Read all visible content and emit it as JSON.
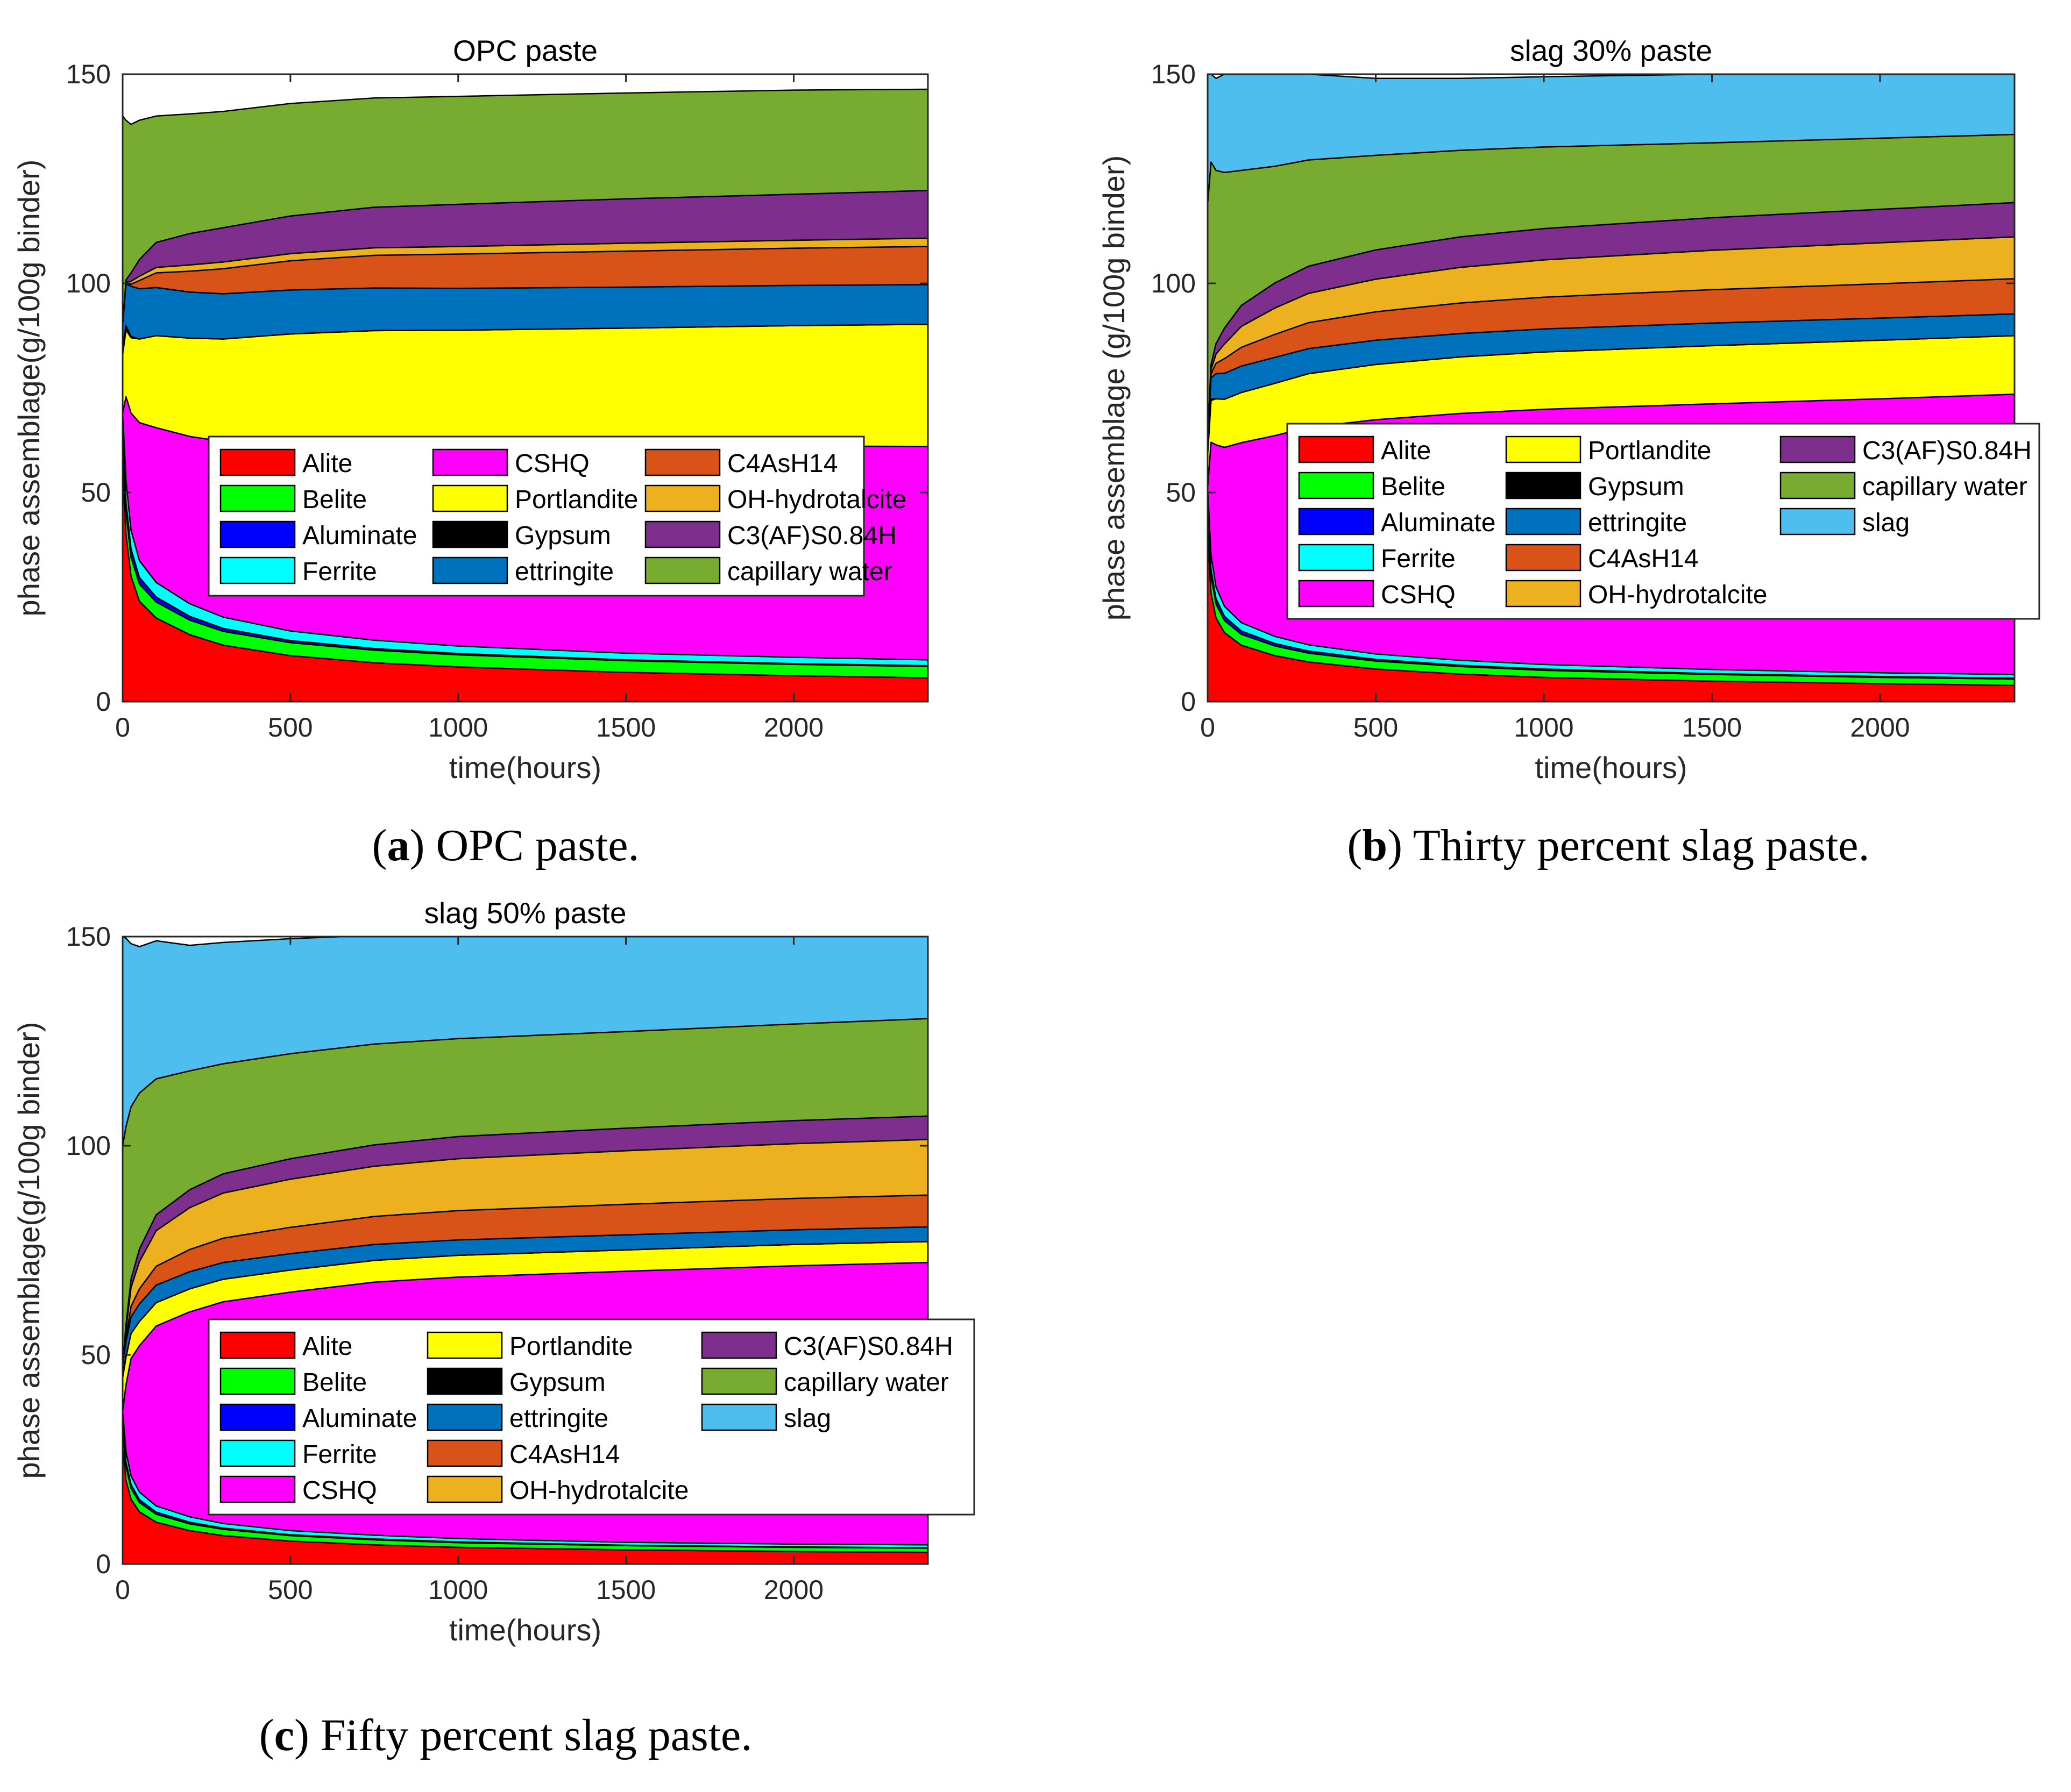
{
  "panels": [
    {
      "caption_label": "a",
      "caption_text": ") OPC paste.",
      "caption_open": "(",
      "chart_data": {
        "type": "area",
        "title": "OPC paste",
        "xlabel": "time(hours)",
        "ylabel": "phase assemblage(g/100g binder)",
        "xlim": [
          0,
          2400
        ],
        "ylim": [
          0,
          150
        ],
        "xticks": [
          0,
          500,
          1000,
          1500,
          2000
        ],
        "yticks": [
          0,
          50,
          100,
          150
        ],
        "x": [
          0,
          10,
          25,
          50,
          100,
          200,
          300,
          500,
          750,
          1000,
          1500,
          2000,
          2400
        ],
        "legend_columns": [
          [
            "Alite",
            "Belite",
            "Aluminate",
            "Ferrite"
          ],
          [
            "CSHQ",
            "Portlandite",
            "Gypsum",
            "ettringite"
          ],
          [
            "C4AsH14",
            "OH-hydrotalcite",
            "C3(AF)S0.84H",
            "capillary water"
          ]
        ],
        "series": [
          {
            "name": "Alite",
            "values": [
              54,
              40,
              30,
              24,
              20,
              16,
              13.5,
              11,
              9.3,
              8.3,
              7,
              6.2,
              5.7
            ]
          },
          {
            "name": "Belite",
            "values": [
              6,
              5.2,
              4.5,
              4.1,
              3.8,
              3.5,
              3.3,
              3.1,
              3,
              2.9,
              2.8,
              2.7,
              2.7
            ]
          },
          {
            "name": "Aluminate",
            "values": [
              3,
              2.5,
              2,
              1.6,
              1.2,
              0.9,
              0.7,
              0.5,
              0.4,
              0.3,
              0.2,
              0.2,
              0.2
            ]
          },
          {
            "name": "Ferrite",
            "values": [
              6,
              5.2,
              4.5,
              4,
              3.5,
              3,
              2.7,
              2.3,
              2,
              1.8,
              1.6,
              1.5,
              1.4
            ]
          },
          {
            "name": "CSHQ",
            "values": [
              0,
              20,
              28,
              33,
              37,
              40,
              42,
              45,
              47,
              48,
              49.5,
              50.5,
              51
            ]
          },
          {
            "name": "Portlandite",
            "values": [
              14,
              16,
              18,
              20,
              22,
              23.5,
              24.5,
              26,
              27,
              27.5,
              28.2,
              28.8,
              29.2
            ]
          },
          {
            "name": "Gypsum",
            "values": [
              2,
              1,
              0.3,
              0,
              0,
              0,
              0,
              0,
              0,
              0,
              0,
              0,
              0
            ]
          },
          {
            "name": "ettringite",
            "values": [
              5,
              10,
              12,
              12,
              11.5,
              11,
              10.8,
              10.5,
              10.2,
              10,
              9.8,
              9.6,
              9.5
            ]
          },
          {
            "name": "C4AsH14",
            "values": [
              0,
              0,
              0.5,
              2,
              3.5,
              5,
              6,
              7,
              7.8,
              8.2,
              8.6,
              8.9,
              9.1
            ]
          },
          {
            "name": "OH-hydrotalcite",
            "values": [
              0,
              0.4,
              0.7,
              1,
              1.3,
              1.5,
              1.6,
              1.7,
              1.8,
              1.8,
              1.9,
              1.9,
              2
            ]
          },
          {
            "name": "C3(AF)S0.84H",
            "values": [
              0,
              0.5,
              2,
              4,
              6,
              7.5,
              8.2,
              9,
              9.7,
              10.1,
              10.6,
              11,
              11.4
            ]
          },
          {
            "name": "capillary water",
            "values": [
              50,
              38.2,
              35.5,
              33.3,
              30.2,
              28.6,
              27.8,
              26.9,
              26.1,
              25.8,
              25.3,
              24.9,
              24.2
            ]
          }
        ]
      }
    },
    {
      "caption_label": "b",
      "caption_text": ") Thirty percent slag paste.",
      "caption_open": "(",
      "chart_data": {
        "type": "area",
        "title": "slag 30% paste",
        "xlabel": "time(hours)",
        "ylabel": "phase assemblage (g/100g binder)",
        "xlim": [
          0,
          2400
        ],
        "ylim": [
          0,
          150
        ],
        "xticks": [
          0,
          500,
          1000,
          1500,
          2000
        ],
        "yticks": [
          0,
          50,
          100,
          150
        ],
        "x": [
          0,
          10,
          25,
          50,
          100,
          200,
          300,
          500,
          750,
          1000,
          1500,
          2000,
          2400
        ],
        "legend_columns": [
          [
            "Alite",
            "Belite",
            "Aluminate",
            "Ferrite",
            "CSHQ"
          ],
          [
            "Portlandite",
            "Gypsum",
            "ettringite",
            "C4AsH14",
            "OH-hydrotalcite"
          ],
          [
            "C3(AF)S0.84H",
            "capillary water",
            "slag"
          ]
        ],
        "series": [
          {
            "name": "Alite",
            "values": [
              40,
              26,
              20,
              16.5,
              13.5,
              11,
              9.5,
              7.8,
              6.6,
              5.8,
              4.9,
              4.3,
              3.9
            ]
          },
          {
            "name": "Belite",
            "values": [
              5,
              4,
              3.3,
              2.9,
              2.6,
              2.3,
              2.1,
              1.9,
              1.8,
              1.7,
              1.6,
              1.5,
              1.5
            ]
          },
          {
            "name": "Aluminate",
            "values": [
              2,
              1.6,
              1.3,
              1,
              0.8,
              0.6,
              0.5,
              0.4,
              0.3,
              0.3,
              0.2,
              0.2,
              0.2
            ]
          },
          {
            "name": "Ferrite",
            "values": [
              4,
              3.4,
              2.8,
              2.4,
              2,
              1.7,
              1.5,
              1.3,
              1.2,
              1.1,
              1,
              0.9,
              0.9
            ]
          },
          {
            "name": "CSHQ",
            "values": [
              0,
              27,
              34,
              38,
              43,
              48,
              52,
              56,
              59,
              61,
              63.5,
              65.5,
              67
            ]
          },
          {
            "name": "Portlandite",
            "values": [
              8,
              10,
              11,
              11.5,
              12,
              12.5,
              12.8,
              13.2,
              13.5,
              13.7,
              13.9,
              14,
              14
            ]
          },
          {
            "name": "Gypsum",
            "values": [
              1,
              0.4,
              0,
              0,
              0,
              0,
              0,
              0,
              0,
              0,
              0,
              0,
              0
            ]
          },
          {
            "name": "ettringite",
            "values": [
              3,
              5,
              6,
              6.2,
              6.3,
              6.2,
              6,
              5.8,
              5.6,
              5.5,
              5.4,
              5.3,
              5.2
            ]
          },
          {
            "name": "C4AsH14",
            "values": [
              0,
              1,
              2.5,
              3.5,
              4.5,
              5.5,
              6.2,
              6.8,
              7.3,
              7.6,
              8,
              8.2,
              8.4
            ]
          },
          {
            "name": "OH-hydrotalcite",
            "values": [
              0,
              1,
              2.2,
              3.5,
              5,
              6.3,
              7,
              7.8,
              8.5,
              8.9,
              9.4,
              9.8,
              10
            ]
          },
          {
            "name": "C3(AF)S0.84H",
            "values": [
              0,
              1.2,
              2.5,
              3.8,
              5,
              6,
              6.5,
              7,
              7.3,
              7.5,
              7.8,
              8,
              8.2
            ]
          },
          {
            "name": "capillary water",
            "values": [
              56,
              48.4,
              41.4,
              37.2,
              32.3,
              27.9,
              25.4,
              22.6,
              20.7,
              19.5,
              17.9,
              17,
              16.3
            ]
          },
          {
            "name": "slag",
            "values": [
              31,
              21,
              22,
              23.5,
              23,
              22,
              20.5,
              18.4,
              17.2,
              16.8,
              16.4,
              15.4,
              14.4
            ]
          }
        ]
      }
    },
    {
      "caption_label": "c",
      "caption_text": ") Fifty percent slag paste.",
      "caption_open": "(",
      "chart_data": {
        "type": "area",
        "title": "slag 50% paste",
        "xlabel": "time(hours)",
        "ylabel": "phase assemblage(g/100g binder)",
        "xlim": [
          0,
          2400
        ],
        "ylim": [
          0,
          150
        ],
        "xticks": [
          0,
          500,
          1000,
          1500,
          2000
        ],
        "yticks": [
          0,
          50,
          100,
          150
        ],
        "x": [
          0,
          10,
          25,
          50,
          100,
          200,
          300,
          500,
          750,
          1000,
          1500,
          2000,
          2400
        ],
        "legend_columns": [
          [
            "Alite",
            "Belite",
            "Aluminate",
            "Ferrite",
            "CSHQ"
          ],
          [
            "Portlandite",
            "Gypsum",
            "ettringite",
            "C4AsH14",
            "OH-hydrotalcite"
          ],
          [
            "C3(AF)S0.84H",
            "capillary water",
            "slag"
          ]
        ],
        "series": [
          {
            "name": "Alite",
            "values": [
              28,
              20,
              15.5,
              12.5,
              10,
              8,
              6.8,
              5.5,
              4.6,
              4,
              3.4,
              3,
              2.8
            ]
          },
          {
            "name": "Belite",
            "values": [
              4,
              3.2,
              2.6,
              2.2,
              1.9,
              1.6,
              1.5,
              1.3,
              1.2,
              1.1,
              1,
              1,
              1
            ]
          },
          {
            "name": "Aluminate",
            "values": [
              1.5,
              1.2,
              0.9,
              0.7,
              0.5,
              0.4,
              0.3,
              0.2,
              0.2,
              0.2,
              0.1,
              0.1,
              0.1
            ]
          },
          {
            "name": "Ferrite",
            "values": [
              3,
              2.5,
              2.1,
              1.8,
              1.5,
              1.3,
              1.1,
              1,
              0.9,
              0.8,
              0.7,
              0.7,
              0.7
            ]
          },
          {
            "name": "CSHQ",
            "values": [
              0,
              16,
              28,
              35,
              43,
              49,
              53,
              57,
              60.5,
              62.5,
              64.8,
              66.5,
              67.5
            ]
          },
          {
            "name": "Portlandite",
            "values": [
              8,
              6.5,
              6,
              5.8,
              5.6,
              5.5,
              5.4,
              5.3,
              5.2,
              5.2,
              5.1,
              5.1,
              5
            ]
          },
          {
            "name": "Gypsum",
            "values": [
              1,
              0.3,
              0,
              0,
              0,
              0,
              0,
              0,
              0,
              0,
              0,
              0,
              0
            ]
          },
          {
            "name": "ettringite",
            "values": [
              2,
              3.5,
              4,
              4.2,
              4.2,
              4.1,
              4,
              3.9,
              3.8,
              3.7,
              3.6,
              3.5,
              3.5
            ]
          },
          {
            "name": "C4AsH14",
            "values": [
              0,
              1,
              2.5,
              3.6,
              4.5,
              5.3,
              5.8,
              6.3,
              6.7,
              7,
              7.3,
              7.5,
              7.6
            ]
          },
          {
            "name": "OH-hydrotalcite",
            "values": [
              0,
              2,
              4.5,
              6.5,
              8.5,
              10,
              10.8,
              11.5,
              12,
              12.4,
              12.8,
              13.1,
              13.3
            ]
          },
          {
            "name": "C3(AF)S0.84H",
            "values": [
              0,
              1,
              2,
              3,
              3.8,
              4.3,
              4.6,
              4.9,
              5.1,
              5.3,
              5.4,
              5.5,
              5.6
            ]
          },
          {
            "name": "capillary water",
            "values": [
              52.5,
              47.4,
              41.2,
              37.3,
              32.5,
              28.4,
              26.3,
              25.1,
              24.1,
              23.4,
              23.1,
              23.1,
              23.3
            ]
          },
          {
            "name": "slag",
            "values": [
              50,
              45,
              39,
              35,
              33,
              30,
              29,
              27.5,
              26,
              25,
              24,
              22.5,
              20
            ]
          }
        ]
      }
    }
  ],
  "colors": {
    "Alite": "#ff0000",
    "Belite": "#00ff00",
    "Aluminate": "#0000ff",
    "Ferrite": "#00ffff",
    "CSHQ": "#ff00ff",
    "Portlandite": "#ffff00",
    "Gypsum": "#000000",
    "ettringite": "#0072bd",
    "C4AsH14": "#d95319",
    "OH-hydrotalcite": "#edb120",
    "C3(AF)S0.84H": "#7e2f8e",
    "capillary water": "#77ac30",
    "slag": "#4dbeee"
  }
}
